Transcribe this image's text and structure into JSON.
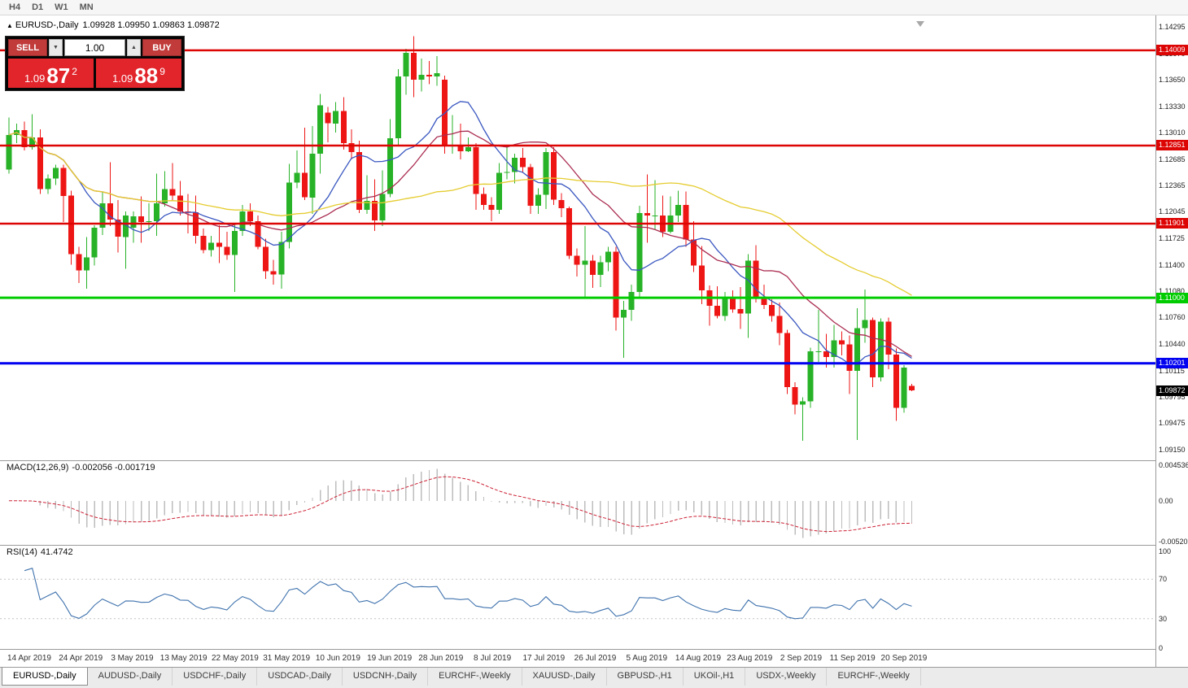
{
  "toolbar": {
    "timeframes": [
      "H4",
      "D1",
      "W1",
      "MN"
    ]
  },
  "chart": {
    "symbol_period": "EURUSD-,Daily",
    "ohlc": "1.09928 1.09950 1.09863 1.09872"
  },
  "icons": {
    "panel_toggle": "▲",
    "spinner_down": "▼",
    "spinner_up": "▲"
  },
  "one_click": {
    "sell_label": "SELL",
    "buy_label": "BUY",
    "lot_size": "1.00",
    "sell_price": {
      "prefix": "1.09",
      "big": "87",
      "sup": "2"
    },
    "buy_price": {
      "prefix": "1.09",
      "big": "88",
      "sup": "9"
    }
  },
  "price_axis": {
    "ticks": [
      "1.14295",
      "1.13970",
      "1.13650",
      "1.13330",
      "1.13010",
      "1.12685",
      "1.12365",
      "1.12045",
      "1.11725",
      "1.11400",
      "1.11080",
      "1.10760",
      "1.10440",
      "1.10115",
      "1.09795",
      "1.09475",
      "1.09150"
    ]
  },
  "levels": [
    {
      "label": "1.14009",
      "value": 1.14009,
      "color": "#dd0404",
      "width": 2.5,
      "kind": "resistance-line-1"
    },
    {
      "label": "1.12851",
      "value": 1.12851,
      "color": "#dd0404",
      "width": 2.5,
      "kind": "resistance-line-2"
    },
    {
      "label": "1.11901",
      "value": 1.11901,
      "color": "#dd0404",
      "width": 2.5,
      "kind": "resistance-line-3"
    },
    {
      "label": "1.11000",
      "value": 1.11,
      "color": "#00cc00",
      "width": 3,
      "kind": "support-line-green"
    },
    {
      "label": "1.10201",
      "value": 1.10201,
      "color": "#0202f0",
      "width": 3,
      "kind": "support-line-blue"
    },
    {
      "label": "1.09872",
      "value": 1.09872,
      "color": "#000000",
      "width": 0,
      "kind": "current-price"
    }
  ],
  "indicators": {
    "macd": {
      "name": "MACD(12,26,9)",
      "values": "-0.002056 -0.001719",
      "axis": [
        "0.004536",
        "0.00",
        "-0.00520"
      ]
    },
    "rsi": {
      "name": "RSI(14)",
      "value": "41.4742",
      "axis": [
        "100",
        "70",
        "30",
        "0"
      ]
    }
  },
  "date_axis": [
    "14 Apr 2019",
    "24 Apr 2019",
    "3 May 2019",
    "13 May 2019",
    "22 May 2019",
    "31 May 2019",
    "10 Jun 2019",
    "19 Jun 2019",
    "28 Jun 2019",
    "8 Jul 2019",
    "17 Jul 2019",
    "26 Jul 2019",
    "5 Aug 2019",
    "14 Aug 2019",
    "23 Aug 2019",
    "2 Sep 2019",
    "11 Sep 2019",
    "20 Sep 2019"
  ],
  "tabs": [
    {
      "label": "EURUSD-,Daily",
      "active": true
    },
    {
      "label": "AUDUSD-,Daily",
      "active": false
    },
    {
      "label": "USDCHF-,Daily",
      "active": false
    },
    {
      "label": "USDCAD-,Daily",
      "active": false
    },
    {
      "label": "USDCNH-,Daily",
      "active": false
    },
    {
      "label": "EURCHF-,Weekly",
      "active": false
    },
    {
      "label": "XAUUSD-,Daily",
      "active": false
    },
    {
      "label": "GBPUSD-,H1",
      "active": false
    },
    {
      "label": "UKOil-,H1",
      "active": false
    },
    {
      "label": "USDX-,Weekly",
      "active": false
    },
    {
      "label": "EURCHF-,Weekly",
      "active": false
    }
  ],
  "chart_data": {
    "type": "candlestick",
    "symbol": "EURUSD",
    "timeframe": "Daily",
    "x_range": [
      "12 Apr 2019",
      "23 Sep 2019"
    ],
    "y_range": [
      1.0915,
      1.14295
    ],
    "bull_color": "#27b227",
    "bear_color": "#ee1515",
    "moving_averages": [
      {
        "period": 10,
        "color": "#3a57c0"
      },
      {
        "period": 20,
        "color": "#aa2c50"
      },
      {
        "period": 50,
        "color": "#e5cc30"
      }
    ],
    "macd_range": [
      -0.0052,
      0.004536
    ],
    "candles": [
      [
        1.1256,
        1.1319,
        1.1251,
        1.1298
      ],
      [
        1.1298,
        1.1312,
        1.1288,
        1.1304
      ],
      [
        1.1304,
        1.1314,
        1.1279,
        1.1283
      ],
      [
        1.1283,
        1.1323,
        1.128,
        1.1295
      ],
      [
        1.1295,
        1.1305,
        1.1226,
        1.1232
      ],
      [
        1.1232,
        1.125,
        1.1226,
        1.1245
      ],
      [
        1.1245,
        1.1262,
        1.1237,
        1.1258
      ],
      [
        1.1258,
        1.1262,
        1.1192,
        1.1224
      ],
      [
        1.1224,
        1.123,
        1.114,
        1.1153
      ],
      [
        1.1153,
        1.1162,
        1.1118,
        1.1133
      ],
      [
        1.1133,
        1.1174,
        1.1111,
        1.1149
      ],
      [
        1.1149,
        1.1188,
        1.1139,
        1.1185
      ],
      [
        1.1185,
        1.1229,
        1.1176,
        1.1215
      ],
      [
        1.1215,
        1.1265,
        1.1187,
        1.1195
      ],
      [
        1.1195,
        1.1219,
        1.1155,
        1.1174
      ],
      [
        1.1174,
        1.1205,
        1.1135,
        1.12
      ],
      [
        1.1185,
        1.1205,
        1.1167,
        1.1199
      ],
      [
        1.1199,
        1.1223,
        1.1167,
        1.1192
      ],
      [
        1.1192,
        1.1215,
        1.1181,
        1.1193
      ],
      [
        1.1193,
        1.1251,
        1.1175,
        1.1215
      ],
      [
        1.1215,
        1.1254,
        1.1211,
        1.1232
      ],
      [
        1.1232,
        1.1264,
        1.1218,
        1.1224
      ],
      [
        1.1224,
        1.1242,
        1.12,
        1.1205
      ],
      [
        1.1205,
        1.1226,
        1.1178,
        1.1204
      ],
      [
        1.1204,
        1.1224,
        1.1166,
        1.1175
      ],
      [
        1.1175,
        1.1184,
        1.1154,
        1.1158
      ],
      [
        1.1158,
        1.1175,
        1.115,
        1.1167
      ],
      [
        1.1167,
        1.1188,
        1.1142,
        1.1162
      ],
      [
        1.1162,
        1.118,
        1.1146,
        1.1152
      ],
      [
        1.1152,
        1.1188,
        1.1107,
        1.1181
      ],
      [
        1.1181,
        1.1213,
        1.1175,
        1.1205
      ],
      [
        1.1205,
        1.1215,
        1.1187,
        1.1193
      ],
      [
        1.1193,
        1.12,
        1.1159,
        1.1162
      ],
      [
        1.1162,
        1.1172,
        1.1123,
        1.1132
      ],
      [
        1.1132,
        1.1146,
        1.1116,
        1.1128
      ],
      [
        1.1128,
        1.118,
        1.1111,
        1.1168
      ],
      [
        1.1168,
        1.1263,
        1.116,
        1.124
      ],
      [
        1.124,
        1.1279,
        1.1233,
        1.1252
      ],
      [
        1.1252,
        1.1307,
        1.1219,
        1.1222
      ],
      [
        1.1222,
        1.1309,
        1.1202,
        1.1275
      ],
      [
        1.1275,
        1.1348,
        1.1251,
        1.1334
      ],
      [
        1.1325,
        1.1332,
        1.1289,
        1.1312
      ],
      [
        1.1312,
        1.1338,
        1.1301,
        1.1327
      ],
      [
        1.1327,
        1.1344,
        1.128,
        1.1288
      ],
      [
        1.1288,
        1.1305,
        1.1268,
        1.1277
      ],
      [
        1.1277,
        1.1291,
        1.1203,
        1.1207
      ],
      [
        1.1207,
        1.1249,
        1.1202,
        1.1218
      ],
      [
        1.1218,
        1.1244,
        1.1181,
        1.1194
      ],
      [
        1.1194,
        1.1255,
        1.1187,
        1.1226
      ],
      [
        1.1226,
        1.1317,
        1.1222,
        1.1294
      ],
      [
        1.1294,
        1.1378,
        1.1286,
        1.1369
      ],
      [
        1.1369,
        1.1403,
        1.1347,
        1.1398
      ],
      [
        1.1398,
        1.1418,
        1.1344,
        1.1365
      ],
      [
        1.1365,
        1.1391,
        1.1351,
        1.1371
      ],
      [
        1.1371,
        1.1388,
        1.136,
        1.1369
      ],
      [
        1.1369,
        1.1394,
        1.1358,
        1.1373
      ],
      [
        1.1365,
        1.137,
        1.1275,
        1.1285
      ],
      [
        1.1285,
        1.1322,
        1.1275,
        1.1285
      ],
      [
        1.1285,
        1.1312,
        1.1268,
        1.1278
      ],
      [
        1.1278,
        1.1295,
        1.1277,
        1.1283
      ],
      [
        1.1283,
        1.1288,
        1.1207,
        1.1226
      ],
      [
        1.1226,
        1.1234,
        1.1207,
        1.1213
      ],
      [
        1.1213,
        1.1222,
        1.1193,
        1.1207
      ],
      [
        1.1207,
        1.1264,
        1.1202,
        1.1252
      ],
      [
        1.1252,
        1.1285,
        1.1244,
        1.1253
      ],
      [
        1.1253,
        1.1275,
        1.1239,
        1.127
      ],
      [
        1.127,
        1.1282,
        1.1252,
        1.1259
      ],
      [
        1.1259,
        1.1263,
        1.1202,
        1.1212
      ],
      [
        1.1212,
        1.1233,
        1.1202,
        1.1225
      ],
      [
        1.1225,
        1.1282,
        1.1208,
        1.1277
      ],
      [
        1.1277,
        1.1283,
        1.1213,
        1.1219
      ],
      [
        1.1219,
        1.1227,
        1.1198,
        1.1209
      ],
      [
        1.1209,
        1.1211,
        1.1147,
        1.1151
      ],
      [
        1.1151,
        1.116,
        1.1126,
        1.114
      ],
      [
        1.114,
        1.1187,
        1.1101,
        1.1145
      ],
      [
        1.1145,
        1.1152,
        1.1112,
        1.1128
      ],
      [
        1.1128,
        1.1151,
        1.1113,
        1.1143
      ],
      [
        1.1143,
        1.1162,
        1.1132,
        1.1156
      ],
      [
        1.1156,
        1.1162,
        1.106,
        1.1076
      ],
      [
        1.1076,
        1.1096,
        1.1027,
        1.1085
      ],
      [
        1.1085,
        1.1116,
        1.1072,
        1.1107
      ],
      [
        1.1107,
        1.1212,
        1.1101,
        1.1203
      ],
      [
        1.1203,
        1.125,
        1.1167,
        1.12
      ],
      [
        1.12,
        1.1243,
        1.1183,
        1.12
      ],
      [
        1.12,
        1.1224,
        1.1174,
        1.118
      ],
      [
        1.118,
        1.1223,
        1.1178,
        1.12
      ],
      [
        1.12,
        1.123,
        1.1192,
        1.1213
      ],
      [
        1.1213,
        1.1229,
        1.1162,
        1.1171
      ],
      [
        1.1171,
        1.1193,
        1.1131,
        1.1139
      ],
      [
        1.1139,
        1.1163,
        1.1092,
        1.1109
      ],
      [
        1.1109,
        1.1115,
        1.1066,
        1.109
      ],
      [
        1.109,
        1.1114,
        1.1075,
        1.1078
      ],
      [
        1.1078,
        1.1107,
        1.1072,
        1.11
      ],
      [
        1.11,
        1.1109,
        1.1082,
        1.1086
      ],
      [
        1.1086,
        1.1113,
        1.1062,
        1.1081
      ],
      [
        1.1081,
        1.1153,
        1.1051,
        1.1145
      ],
      [
        1.1145,
        1.1164,
        1.1094,
        1.1101
      ],
      [
        1.1101,
        1.1116,
        1.1086,
        1.1091
      ],
      [
        1.1091,
        1.1098,
        1.1071,
        1.1078
      ],
      [
        1.1078,
        1.1094,
        1.1042,
        1.1057
      ],
      [
        1.1057,
        1.1061,
        1.0983,
        1.0991
      ],
      [
        1.0991,
        1.0997,
        1.0958,
        1.097
      ],
      [
        1.097,
        1.0979,
        1.0926,
        1.0974
      ],
      [
        1.0974,
        1.1039,
        1.0966,
        1.1035
      ],
      [
        1.1035,
        1.1085,
        1.1022,
        1.1035
      ],
      [
        1.1035,
        1.1056,
        1.1015,
        1.1028
      ],
      [
        1.1028,
        1.1067,
        1.1015,
        1.1048
      ],
      [
        1.1048,
        1.1059,
        1.103,
        1.1043
      ],
      [
        1.1043,
        1.1054,
        1.0983,
        1.1011
      ],
      [
        1.1011,
        1.1087,
        1.0927,
        1.1063
      ],
      [
        1.1063,
        1.111,
        1.1045,
        1.1073
      ],
      [
        1.1073,
        1.1076,
        1.0991,
        1.1003
      ],
      [
        1.1003,
        1.1075,
        1.0998,
        1.1071
      ],
      [
        1.1071,
        1.1076,
        1.1013,
        1.1031
      ],
      [
        1.1031,
        1.1038,
        1.095,
        1.0966
      ],
      [
        1.0966,
        1.1018,
        1.096,
        1.1015
      ],
      [
        1.09928,
        1.0995,
        1.09863,
        1.09872
      ]
    ]
  }
}
